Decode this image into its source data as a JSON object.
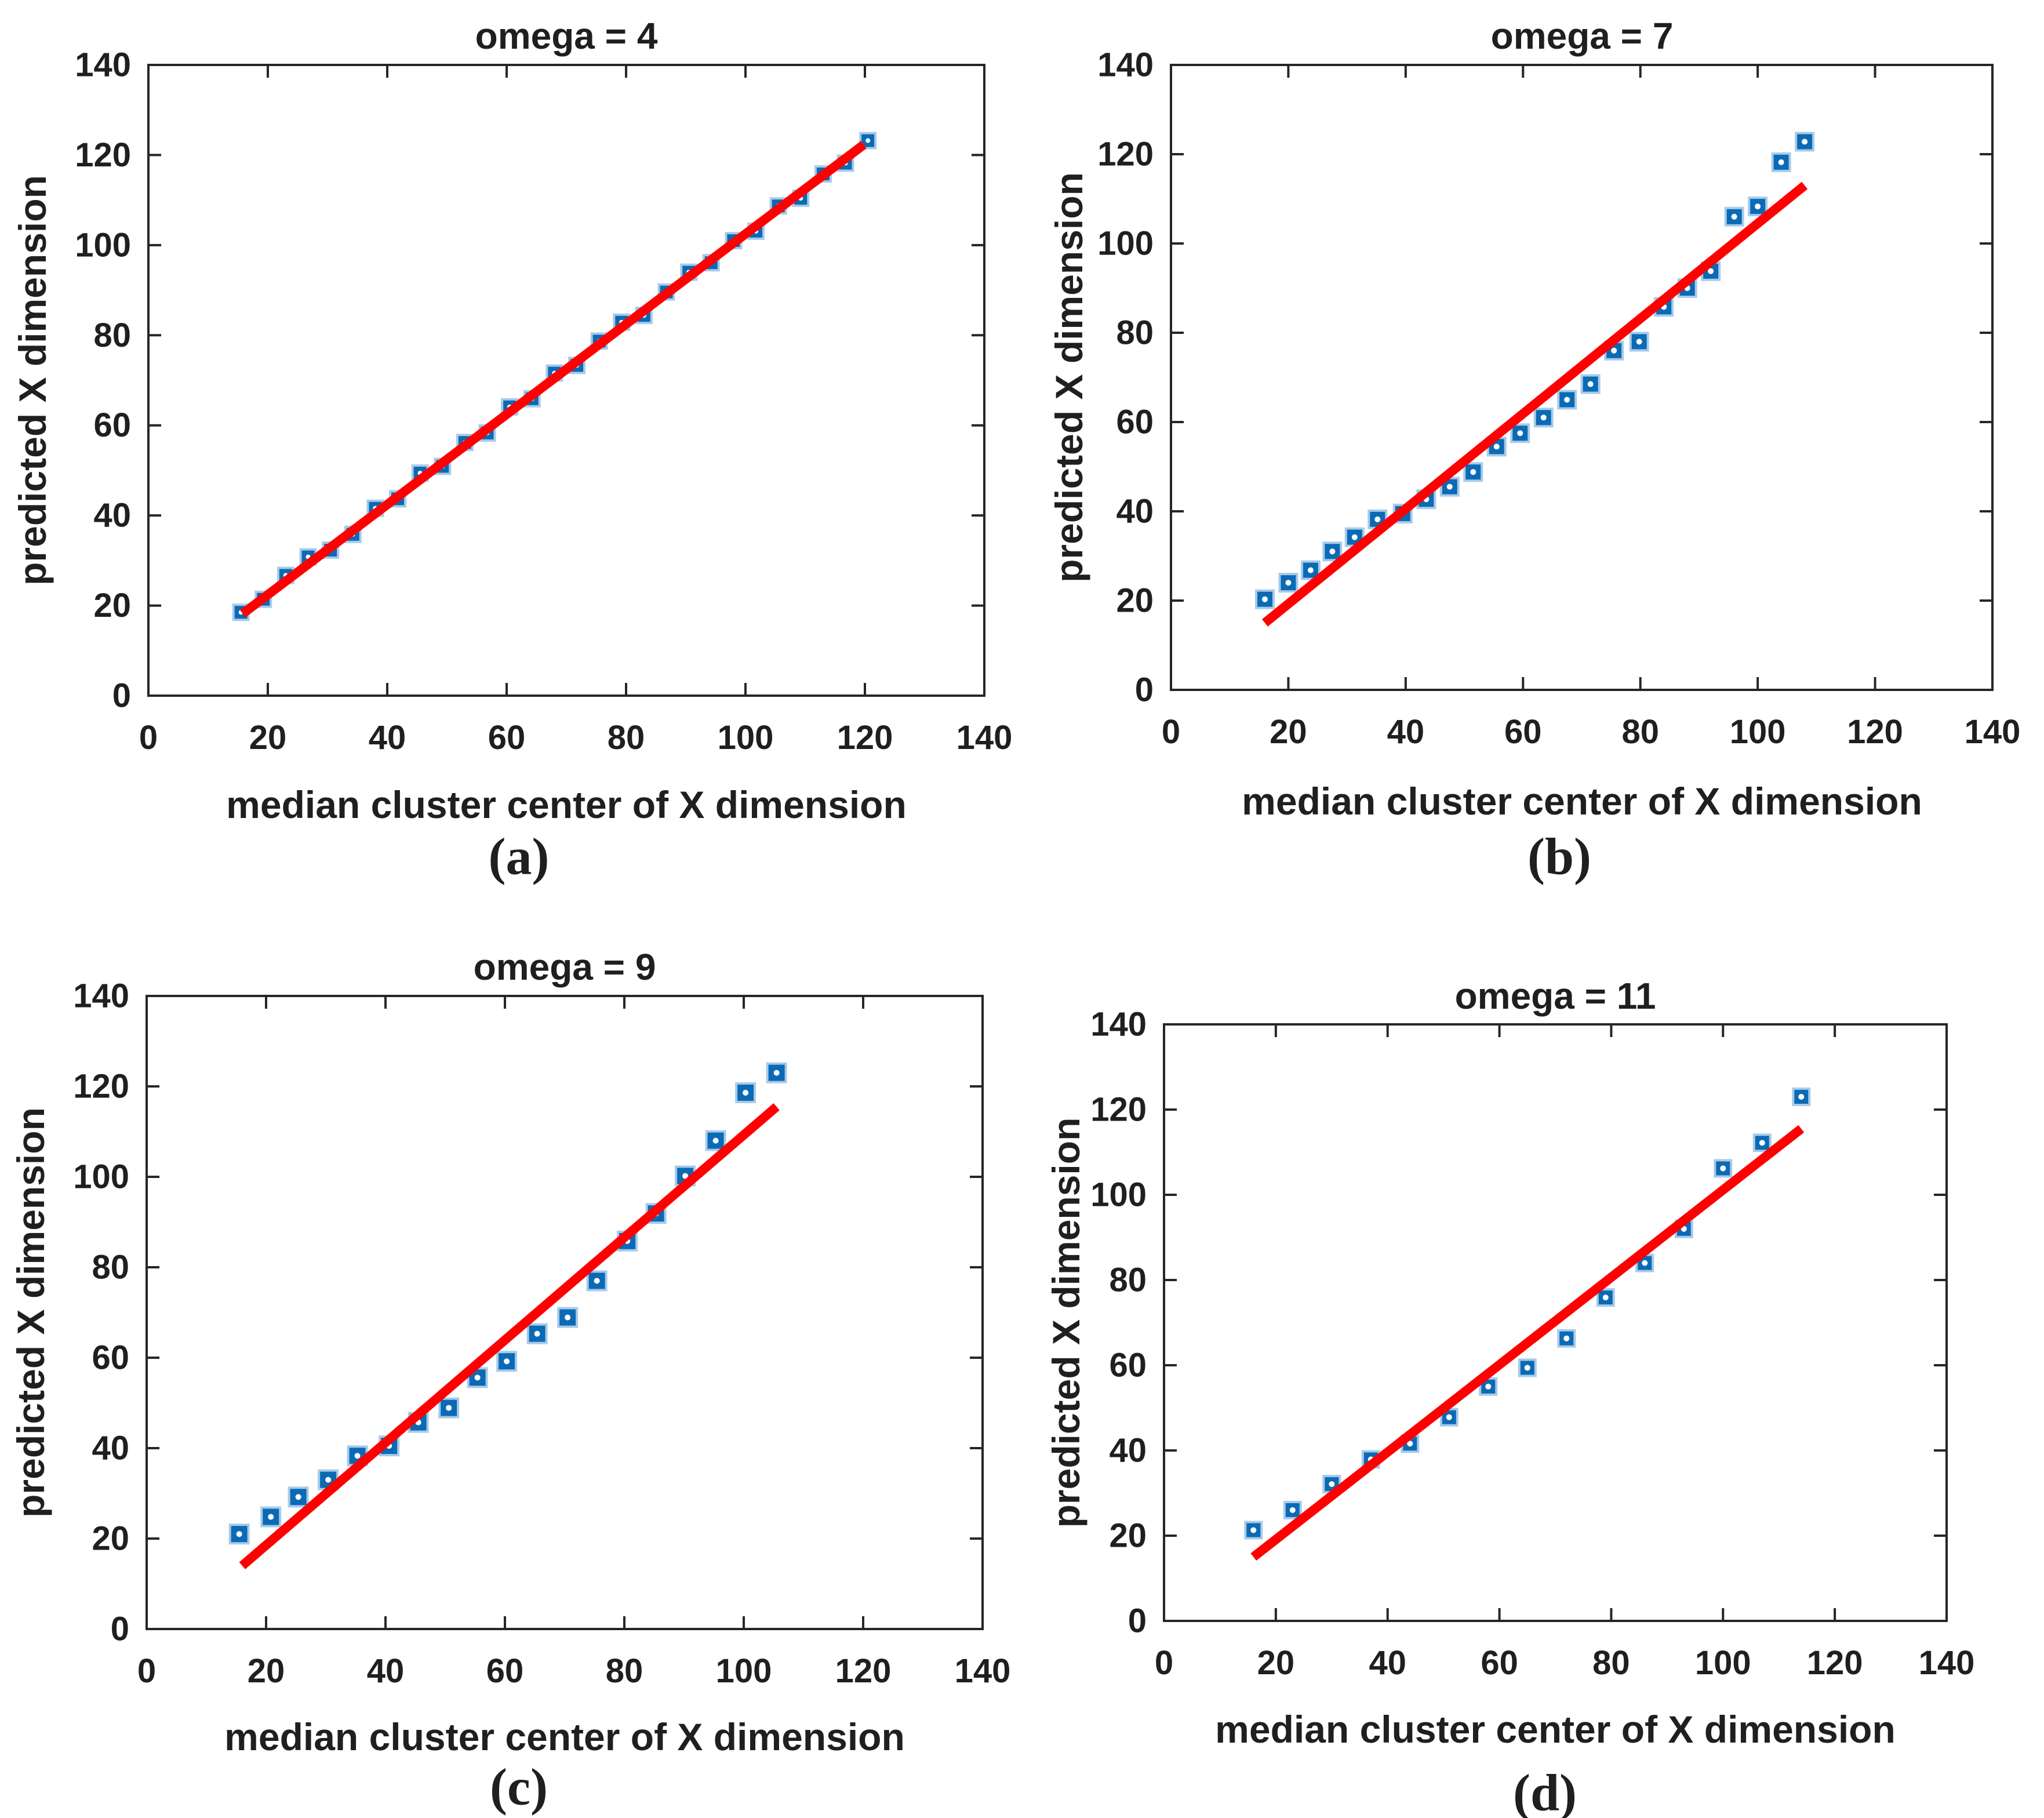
{
  "figure": {
    "background": "#ffffff",
    "panel_count": 4
  },
  "colors": {
    "marker_fill": "#0b6ab5",
    "marker_edge": "#a8cbe9",
    "marker_center_dot": "#ffffff",
    "fit_line": "#ff0000",
    "axis": "#262626",
    "text": "#1f1f1f"
  },
  "chart_data": [
    {
      "type": "scatter",
      "title": "omega = 4",
      "xlabel": "median cluster center of X dimension",
      "ylabel": "predicted X dimension",
      "caption": "(a)",
      "xlim": [
        0,
        140
      ],
      "ylim": [
        0,
        140
      ],
      "xticks": [
        0,
        20,
        40,
        60,
        80,
        100,
        120,
        140
      ],
      "yticks": [
        0,
        20,
        40,
        60,
        80,
        100,
        120,
        140
      ],
      "grid": false,
      "legend": null,
      "points": [
        [
          15.5,
          18.5
        ],
        [
          19.25,
          21.4
        ],
        [
          23,
          26.7
        ],
        [
          26.75,
          30.8
        ],
        [
          30.5,
          32.3
        ],
        [
          34.25,
          35.8
        ],
        [
          38,
          41.6
        ],
        [
          41.75,
          43.7
        ],
        [
          45.5,
          49.4
        ],
        [
          49.25,
          50.9
        ],
        [
          53,
          56.2
        ],
        [
          56.75,
          58.3
        ],
        [
          60.5,
          64.1
        ],
        [
          64.25,
          65.9
        ],
        [
          68,
          71.6
        ],
        [
          71.75,
          73.3
        ],
        [
          75.5,
          78.7
        ],
        [
          79.25,
          82.9
        ],
        [
          83,
          84.4
        ],
        [
          86.75,
          89.6
        ],
        [
          90.5,
          94.0
        ],
        [
          94.25,
          96.1
        ],
        [
          98,
          101.0
        ],
        [
          101.75,
          103.1
        ],
        [
          105.5,
          108.7
        ],
        [
          109.25,
          110.4
        ],
        [
          113,
          115.8
        ],
        [
          116.75,
          118.2
        ],
        [
          120.5,
          123.2
        ]
      ],
      "fit_line": {
        "x1": 15.8,
        "y1": 18.2,
        "x2": 119.8,
        "y2": 122.3
      }
    },
    {
      "type": "scatter",
      "title": "omega = 7",
      "xlabel": "median cluster center of X dimension",
      "ylabel": "predicted X dimension",
      "caption": "(b)",
      "xlim": [
        0,
        140
      ],
      "ylim": [
        0,
        140
      ],
      "xticks": [
        0,
        20,
        40,
        60,
        80,
        100,
        120,
        140
      ],
      "yticks": [
        0,
        20,
        40,
        60,
        80,
        100,
        120,
        140
      ],
      "grid": false,
      "legend": null,
      "points": [
        [
          16,
          20.3
        ],
        [
          20,
          24.0
        ],
        [
          23.8,
          26.8
        ],
        [
          27.5,
          31.0
        ],
        [
          31.3,
          34.2
        ],
        [
          35.2,
          38.2
        ],
        [
          39.5,
          39.5
        ],
        [
          43.5,
          42.7
        ],
        [
          47.5,
          45.5
        ],
        [
          51.5,
          48.8
        ],
        [
          55.5,
          54.5
        ],
        [
          59.5,
          57.5
        ],
        [
          63.5,
          61.0
        ],
        [
          67.5,
          65.0
        ],
        [
          71.5,
          68.5
        ],
        [
          75.5,
          76.0
        ],
        [
          79.8,
          78.0
        ],
        [
          84,
          85.8
        ],
        [
          88,
          90.0
        ],
        [
          92,
          93.8
        ],
        [
          96,
          106.0
        ],
        [
          100,
          108.3
        ],
        [
          104,
          118.2
        ],
        [
          108,
          122.8
        ]
      ],
      "fit_line": {
        "x1": 16,
        "y1": 15.0,
        "x2": 108,
        "y2": 113.0
      }
    },
    {
      "type": "scatter",
      "title": "omega = 9",
      "xlabel": "median cluster center of X dimension",
      "ylabel": "predicted X dimension",
      "caption": "(c)",
      "xlim": [
        0,
        140
      ],
      "ylim": [
        0,
        140
      ],
      "xticks": [
        0,
        20,
        40,
        60,
        80,
        100,
        120,
        140
      ],
      "yticks": [
        0,
        20,
        40,
        60,
        80,
        100,
        120,
        140
      ],
      "grid": false,
      "legend": null,
      "points": [
        [
          15.5,
          21.0
        ],
        [
          20.8,
          24.8
        ],
        [
          25.4,
          29.2
        ],
        [
          30.4,
          33.0
        ],
        [
          35.3,
          38.3
        ],
        [
          40.6,
          40.5
        ],
        [
          45.5,
          45.7
        ],
        [
          50.6,
          48.9
        ],
        [
          55.4,
          55.6
        ],
        [
          60.3,
          59.2
        ],
        [
          65.4,
          65.3
        ],
        [
          70.5,
          68.9
        ],
        [
          75.4,
          77.0
        ],
        [
          80.5,
          85.8
        ],
        [
          85.3,
          91.9
        ],
        [
          90.2,
          100.2
        ],
        [
          95.3,
          108.0
        ],
        [
          100.3,
          118.6
        ],
        [
          105.5,
          123.0
        ]
      ],
      "fit_line": {
        "x1": 16,
        "y1": 14.0,
        "x2": 105.5,
        "y2": 115.5
      }
    },
    {
      "type": "scatter",
      "title": "omega = 11",
      "xlabel": "median cluster center of X dimension",
      "ylabel": "predicted X dimension",
      "caption": "(d)",
      "xlim": [
        0,
        140
      ],
      "ylim": [
        0,
        140
      ],
      "xticks": [
        0,
        20,
        40,
        60,
        80,
        100,
        120,
        140
      ],
      "yticks": [
        0,
        20,
        40,
        60,
        80,
        100,
        120,
        140
      ],
      "grid": false,
      "legend": null,
      "points": [
        [
          16,
          21.3
        ],
        [
          23,
          26.0
        ],
        [
          30,
          32.1
        ],
        [
          37,
          37.9
        ],
        [
          44,
          41.6
        ],
        [
          51,
          47.8
        ],
        [
          58,
          55.0
        ],
        [
          65,
          59.4
        ],
        [
          72,
          66.3
        ],
        [
          79,
          75.9
        ],
        [
          86,
          84.0
        ],
        [
          93,
          92.0
        ],
        [
          100,
          106.2
        ],
        [
          107,
          112.2
        ],
        [
          114,
          123.0
        ]
      ],
      "fit_line": {
        "x1": 16,
        "y1": 15.0,
        "x2": 114,
        "y2": 115.5
      }
    }
  ]
}
